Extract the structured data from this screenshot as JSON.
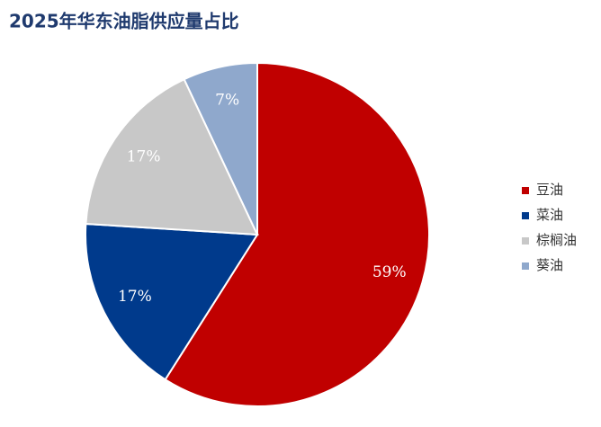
{
  "chart_data": {
    "type": "pie",
    "title": "2025年华东油脂供应量占比",
    "categories": [
      "豆油",
      "菜油",
      "棕榈油",
      "葵油"
    ],
    "values": [
      59,
      17,
      17,
      7
    ],
    "value_labels": [
      "59%",
      "17%",
      "17%",
      "7%"
    ],
    "colors": [
      "#c00000",
      "#003a8c",
      "#c8c8c8",
      "#8fa8cc"
    ],
    "legend": "right"
  }
}
